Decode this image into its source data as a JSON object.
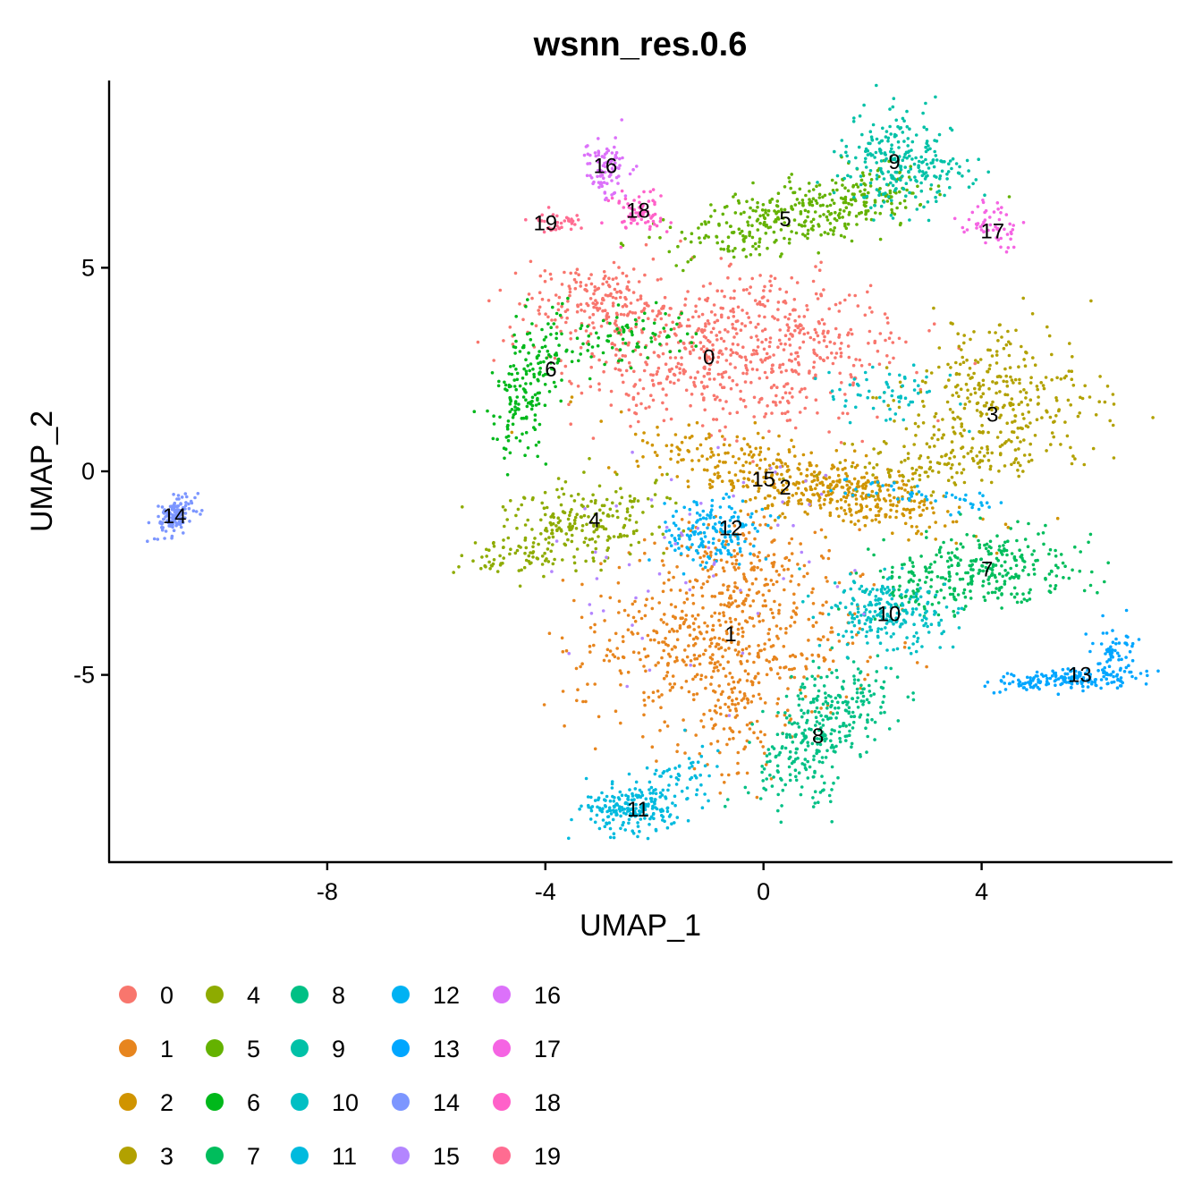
{
  "chart_data": {
    "type": "scatter",
    "title": "wsnn_res.0.6",
    "xlabel": "UMAP_1",
    "ylabel": "UMAP_2",
    "xlim": [
      -12,
      7.5
    ],
    "ylim": [
      -9.6,
      9.6
    ],
    "xticks": [
      -8,
      -4,
      0,
      4
    ],
    "xtick_labels": [
      "-8",
      "-4",
      "0",
      "4"
    ],
    "yticks": [
      -5,
      0,
      5
    ],
    "ytick_labels": [
      "-5",
      "0",
      "5"
    ],
    "grid": false,
    "legend_position": "bottom",
    "clusters": [
      {
        "name": "0",
        "color": "#F8766D",
        "label_x": -1.0,
        "label_y": 2.8
      },
      {
        "name": "1",
        "color": "#E7851E",
        "label_x": -0.6,
        "label_y": -4.0
      },
      {
        "name": "2",
        "color": "#D09400",
        "label_x": 0.4,
        "label_y": -0.4
      },
      {
        "name": "3",
        "color": "#B2A100",
        "label_x": 4.2,
        "label_y": 1.4
      },
      {
        "name": "4",
        "color": "#8EAB00",
        "label_x": -3.1,
        "label_y": -1.2
      },
      {
        "name": "5",
        "color": "#64B200",
        "label_x": 0.4,
        "label_y": 6.2
      },
      {
        "name": "6",
        "color": "#00B81B",
        "label_x": -3.9,
        "label_y": 2.5
      },
      {
        "name": "7",
        "color": "#00BD5C",
        "label_x": 4.1,
        "label_y": -2.4
      },
      {
        "name": "8",
        "color": "#00C085",
        "label_x": 1.0,
        "label_y": -6.5
      },
      {
        "name": "9",
        "color": "#00C1A7",
        "label_x": 2.4,
        "label_y": 7.6
      },
      {
        "name": "10",
        "color": "#00BFC4",
        "label_x": 2.3,
        "label_y": -3.5
      },
      {
        "name": "11",
        "color": "#00BADE",
        "label_x": -2.3,
        "label_y": -8.3
      },
      {
        "name": "12",
        "color": "#00B2F3",
        "label_x": -0.6,
        "label_y": -1.4
      },
      {
        "name": "13",
        "color": "#00A6FF",
        "label_x": 5.8,
        "label_y": -5.0
      },
      {
        "name": "14",
        "color": "#7C96FF",
        "label_x": -10.8,
        "label_y": -1.1
      },
      {
        "name": "15",
        "color": "#B385FF",
        "label_x": 0.0,
        "label_y": -0.2
      },
      {
        "name": "16",
        "color": "#DC71FA",
        "label_x": -2.9,
        "label_y": 7.5
      },
      {
        "name": "17",
        "color": "#F564E3",
        "label_x": 4.2,
        "label_y": 5.9
      },
      {
        "name": "18",
        "color": "#FF61C9",
        "label_x": -2.3,
        "label_y": 6.4
      },
      {
        "name": "19",
        "color": "#FF6C91",
        "label_x": -4.0,
        "label_y": 6.1
      }
    ]
  }
}
